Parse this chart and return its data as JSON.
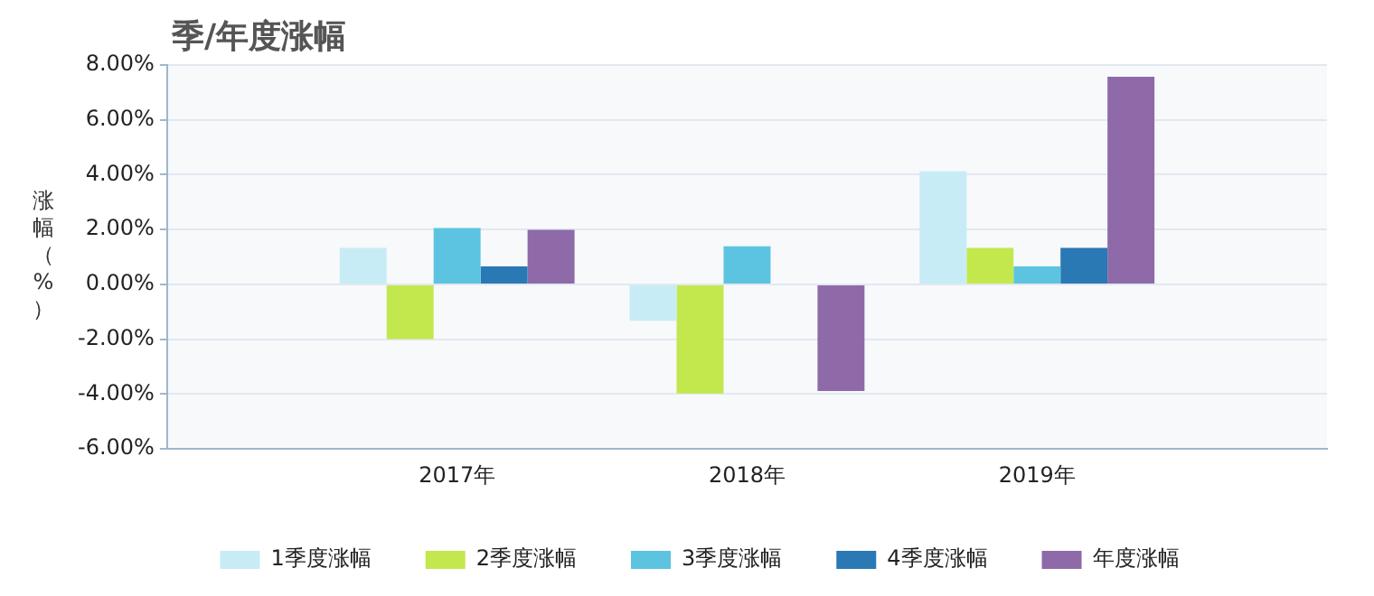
{
  "chart_data": {
    "type": "bar",
    "title": "季/年度涨幅",
    "ylabel": "涨幅（%）",
    "categories": [
      null,
      "2017年",
      "2018年",
      "2019年",
      null
    ],
    "series": [
      {
        "name": "1季度涨幅",
        "color": "#c8ecf6",
        "values": [
          null,
          1.33,
          -1.33,
          4.12,
          null
        ]
      },
      {
        "name": "2季度涨幅",
        "color": "#c2e84e",
        "values": [
          null,
          -1.99,
          -3.98,
          1.33,
          null
        ]
      },
      {
        "name": "3季度涨幅",
        "color": "#5cc4e0",
        "values": [
          null,
          2.06,
          1.39,
          0.66,
          null
        ]
      },
      {
        "name": "4季度涨幅",
        "color": "#2a78b4",
        "values": [
          null,
          0.66,
          null,
          1.33,
          null
        ]
      },
      {
        "name": "年度涨幅",
        "color": "#8e6aa8",
        "values": [
          null,
          1.99,
          -3.89,
          7.57,
          null
        ]
      }
    ],
    "ylim": [
      -6,
      8
    ],
    "yticks": [
      {
        "value": -6,
        "label": "-6.00%"
      },
      {
        "value": -4,
        "label": "-4.00%"
      },
      {
        "value": -2,
        "label": "-2.00%"
      },
      {
        "value": 0,
        "label": "0.00%"
      },
      {
        "value": 2,
        "label": "2.00%"
      },
      {
        "value": 4,
        "label": "4.00%"
      },
      {
        "value": 6,
        "label": "6.00%"
      },
      {
        "value": 8,
        "label": "8.00%"
      }
    ],
    "grid": "y",
    "legend": "bottom"
  }
}
